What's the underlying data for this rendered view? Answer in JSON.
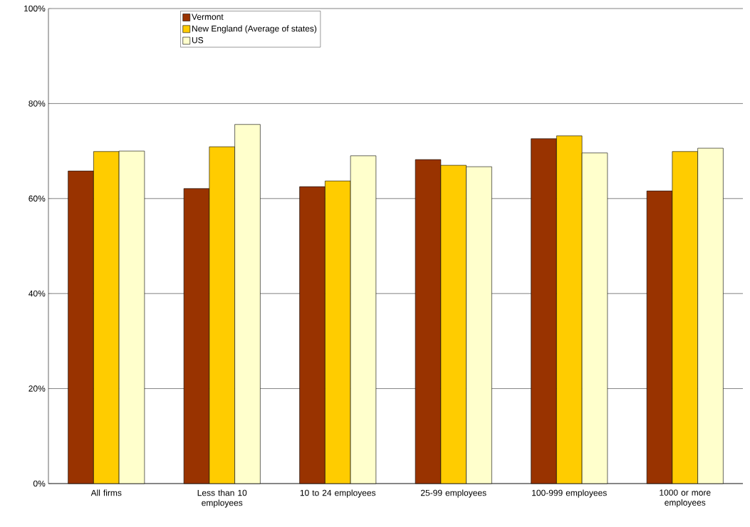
{
  "chart_data": {
    "type": "bar",
    "categories": [
      "All firms",
      "Less than 10 employees",
      "10 to 24 employees",
      "25-99 employees",
      "100-999 employees",
      "1000 or more employees"
    ],
    "series": [
      {
        "name": "Vermont",
        "color": "#993300",
        "values": [
          65.8,
          62.1,
          62.5,
          68.2,
          72.6,
          61.6
        ]
      },
      {
        "name": "New England (Average of states)",
        "color": "#ffcc00",
        "values": [
          69.9,
          70.9,
          63.7,
          67.0,
          73.2,
          69.9
        ]
      },
      {
        "name": "US",
        "color": "#ffffcc",
        "values": [
          70.0,
          75.6,
          69.0,
          66.7,
          69.6,
          70.6
        ]
      }
    ],
    "ylim": [
      0,
      100
    ],
    "yticks": [
      {
        "value": 0,
        "label": "0%"
      },
      {
        "value": 20,
        "label": "20%"
      },
      {
        "value": 40,
        "label": "40%"
      },
      {
        "value": 60,
        "label": "60%"
      },
      {
        "value": 80,
        "label": "80%"
      },
      {
        "value": 100,
        "label": "100%"
      }
    ],
    "grid": "y",
    "legend": "top left"
  }
}
